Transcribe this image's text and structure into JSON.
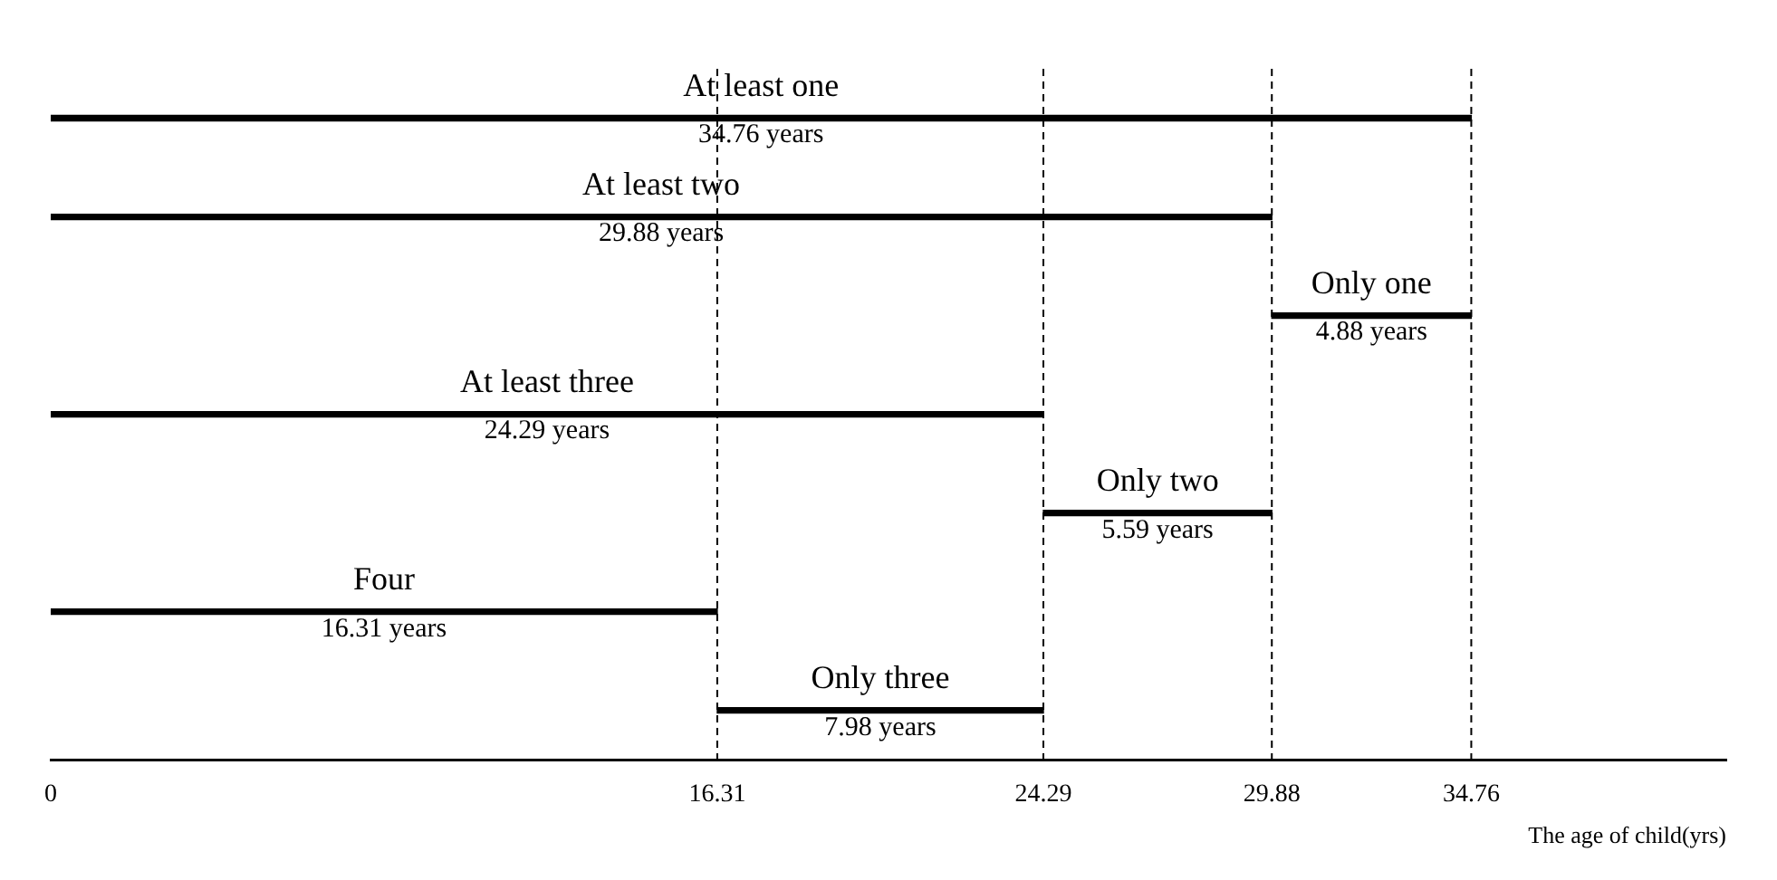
{
  "chart_data": {
    "type": "bar",
    "orientation": "horizontal",
    "categories": [
      "At least one",
      "At least two",
      "Only one",
      "At least three",
      "Only two",
      "Four",
      "Only three"
    ],
    "values": [
      34.76,
      29.88,
      4.88,
      24.29,
      5.59,
      16.31,
      7.98
    ],
    "base": [
      0,
      0,
      29.88,
      0,
      24.29,
      0,
      16.31
    ],
    "value_labels": [
      "34.76 years",
      "29.88 years",
      "4.88 years",
      "24.29 years",
      "5.59 years",
      "16.31 years",
      "7.98 years"
    ],
    "color": "#000000",
    "xlim": [
      0,
      41
    ],
    "xticks": [
      0,
      16.31,
      24.29,
      29.88,
      34.76
    ],
    "xlabel": "The age of child(yrs)",
    "ref_lines": [
      {
        "axis": "x",
        "value": 16.31,
        "line_style": "dashed"
      },
      {
        "axis": "x",
        "value": 24.29,
        "line_style": "dashed"
      },
      {
        "axis": "x",
        "value": 29.88,
        "line_style": "dashed"
      },
      {
        "axis": "x",
        "value": 34.76,
        "line_style": "dashed"
      }
    ],
    "grid": false,
    "legend": false
  }
}
